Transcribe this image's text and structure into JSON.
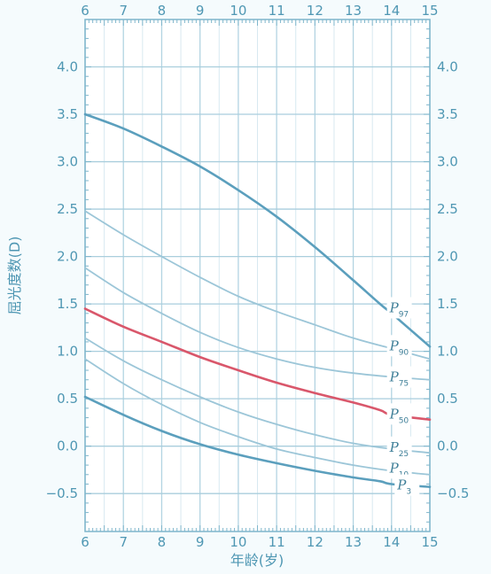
{
  "chart_data": {
    "type": "line",
    "title": "",
    "xlabel": "年龄(岁)",
    "ylabel": "屈光度数(D)",
    "xlim": [
      6,
      15
    ],
    "ylim": [
      -0.9,
      4.5
    ],
    "x_ticks": [
      "6",
      "7",
      "8",
      "9",
      "10",
      "11",
      "12",
      "13",
      "14",
      "15"
    ],
    "y_ticks": [
      "4.0",
      "3.5",
      "3.0",
      "2.5",
      "2.0",
      "1.5",
      "1.0",
      "0.5",
      "0.0",
      "−0.5"
    ],
    "y_tick_values": [
      4.0,
      3.5,
      3.0,
      2.5,
      2.0,
      1.5,
      1.0,
      0.5,
      0.0,
      -0.5
    ],
    "grid": true,
    "series": [
      {
        "name": "P97",
        "label_p": "P",
        "label_sub": "97",
        "color": "#5b9fbd",
        "width": 2.6,
        "label_at": [
          13.95,
          1.45
        ],
        "x": [
          6,
          7,
          8,
          9,
          10,
          11,
          12,
          13,
          13.7,
          14,
          15
        ],
        "y": [
          3.5,
          3.35,
          3.16,
          2.95,
          2.7,
          2.42,
          2.1,
          1.75,
          1.5,
          1.4,
          1.05
        ]
      },
      {
        "name": "P90",
        "label_p": "P",
        "label_sub": "90",
        "color": "#9cc6d8",
        "width": 1.8,
        "label_at": [
          13.95,
          1.05
        ],
        "x": [
          6,
          7,
          8,
          9,
          10,
          11,
          12,
          13,
          14,
          15
        ],
        "y": [
          2.48,
          2.23,
          2.0,
          1.78,
          1.58,
          1.42,
          1.28,
          1.14,
          1.03,
          0.92
        ]
      },
      {
        "name": "P75",
        "label_p": "P",
        "label_sub": "75",
        "color": "#9cc6d8",
        "width": 1.8,
        "label_at": [
          13.95,
          0.72
        ],
        "x": [
          6,
          7,
          8,
          9,
          10,
          11,
          12,
          13,
          14,
          15
        ],
        "y": [
          1.88,
          1.62,
          1.4,
          1.2,
          1.04,
          0.92,
          0.83,
          0.77,
          0.73,
          0.7
        ]
      },
      {
        "name": "P50",
        "label_p": "P",
        "label_sub": "50",
        "color": "#d9576b",
        "width": 2.6,
        "label_at": [
          13.95,
          0.33
        ],
        "x": [
          6,
          7,
          8,
          9,
          10,
          11,
          12,
          13,
          13.7,
          14,
          15
        ],
        "y": [
          1.45,
          1.26,
          1.1,
          0.94,
          0.8,
          0.67,
          0.56,
          0.46,
          0.38,
          0.33,
          0.28
        ]
      },
      {
        "name": "P25",
        "label_p": "P",
        "label_sub": "25",
        "color": "#9cc6d8",
        "width": 1.8,
        "label_at": [
          13.95,
          -0.02
        ],
        "x": [
          6,
          7,
          8,
          9,
          10,
          11,
          12,
          13,
          14,
          15
        ],
        "y": [
          1.14,
          0.9,
          0.7,
          0.52,
          0.36,
          0.23,
          0.12,
          0.03,
          -0.03,
          -0.07
        ]
      },
      {
        "name": "P10",
        "label_p": "P",
        "label_sub": "10",
        "color": "#9cc6d8",
        "width": 1.8,
        "label_at": [
          13.95,
          -0.24
        ],
        "x": [
          6,
          7,
          8,
          9,
          10,
          11,
          12,
          13,
          14,
          15
        ],
        "y": [
          0.92,
          0.66,
          0.44,
          0.25,
          0.1,
          -0.03,
          -0.12,
          -0.2,
          -0.26,
          -0.3
        ]
      },
      {
        "name": "P3",
        "label_p": "P",
        "label_sub": "3",
        "color": "#5b9fbd",
        "width": 2.6,
        "label_at": [
          14.15,
          -0.42
        ],
        "x": [
          6,
          7,
          8,
          9,
          10,
          11,
          12,
          13,
          13.7,
          14,
          15
        ],
        "y": [
          0.52,
          0.33,
          0.16,
          0.02,
          -0.09,
          -0.18,
          -0.26,
          -0.33,
          -0.37,
          -0.4,
          -0.43
        ]
      }
    ]
  }
}
